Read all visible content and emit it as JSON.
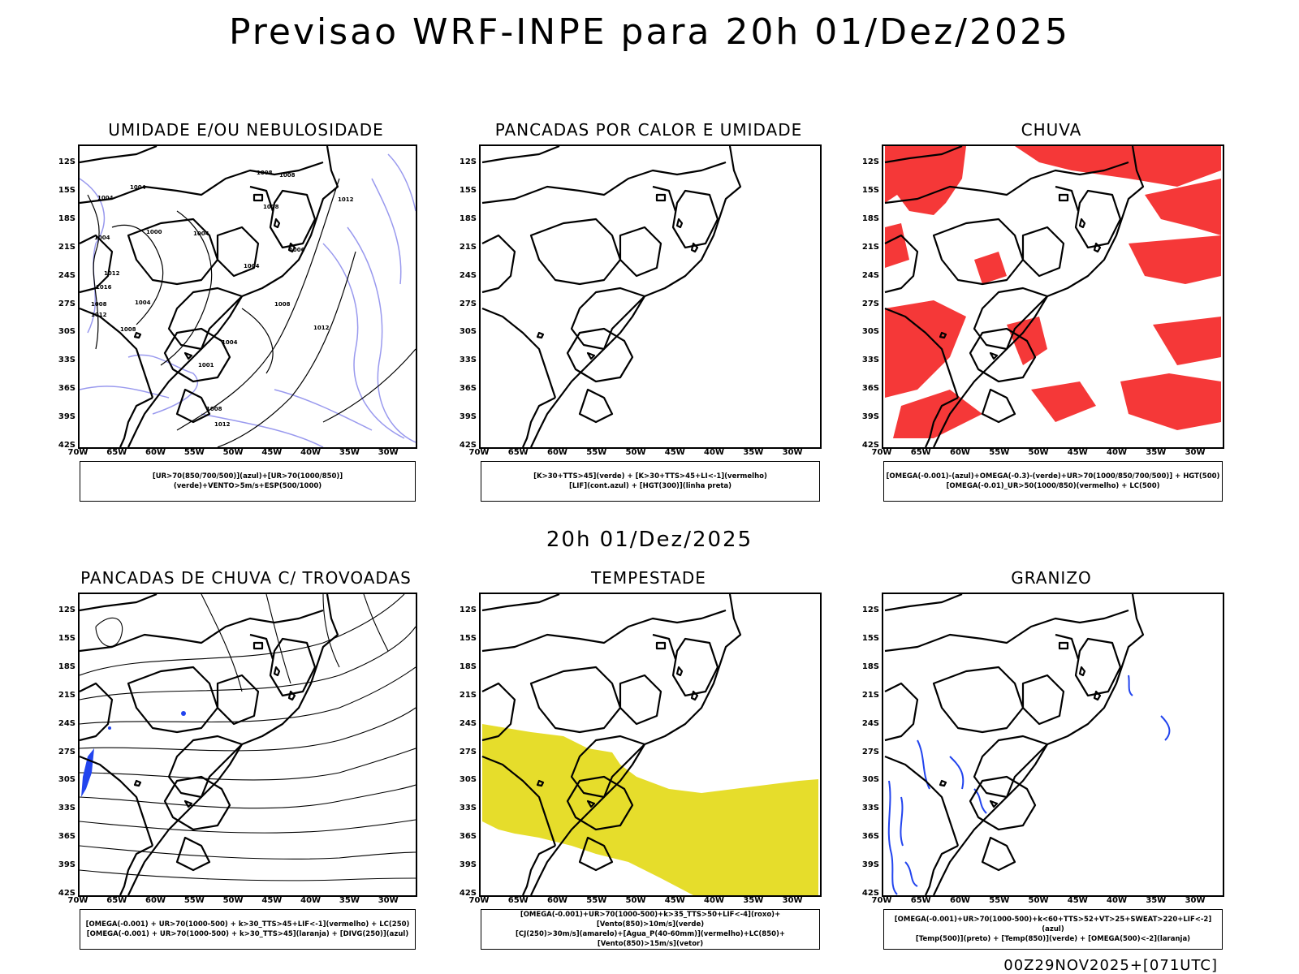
{
  "title": "Previsao WRF-INPE  para 20h 01/Dez/2025",
  "middle_title": "20h 01/Dez/2025",
  "footer": "00Z29NOV2025+[071UTC]",
  "lat_ticks": [
    "12S",
    "15S",
    "18S",
    "21S",
    "24S",
    "27S",
    "30S",
    "33S",
    "36S",
    "39S",
    "42S"
  ],
  "lon_ticks": [
    "70W",
    "65W",
    "60W",
    "55W",
    "50W",
    "45W",
    "40W",
    "35W",
    "30W"
  ],
  "colors": {
    "blue_contour": "#9999ee",
    "red_fill": "#f53838",
    "yellow_fill": "#e6dd2b",
    "blue_marks": "#2244ee"
  },
  "panels": [
    {
      "title": "UMIDADE E/OU NEBULOSIDADE",
      "legend": [
        "[UR>70(850/700/500)](azul)+[UR>70(1000/850)](verde)+VENTO>5m/s+ESP(500/1000)"
      ],
      "isobars": [
        "1004",
        "1004",
        "1008",
        "1008",
        "1000",
        "1004",
        "1004",
        "1008",
        "1012",
        "1016",
        "1004",
        "1008",
        "1012",
        "1004",
        "1008",
        "1004",
        "1001",
        "1012",
        "1008",
        "1012",
        "1008",
        "1012",
        "1006"
      ]
    },
    {
      "title": "PANCADAS POR CALOR E UMIDADE",
      "legend": [
        "[K>30+TTS>45](verde) + [K>30+TTS>45+LI<-1](vermelho)",
        "[LIF](cont.azul) + [HGT(300)](linha preta)"
      ]
    },
    {
      "title": "CHUVA",
      "legend": [
        "[OMEGA(-0.001)-(azul)+OMEGA(-0.3)-(verde)+UR>70(1000/850/700/500)] + HGT(500)",
        "[OMEGA(-0.01)_UR>50(1000/850)(vermelho) + LC(500)"
      ]
    },
    {
      "title": "PANCADAS DE CHUVA C/ TROVOADAS",
      "legend": [
        "[OMEGA(-0.001) + UR>70(1000-500) + k>30_TTS>45+LIF<-1](vermelho) + LC(250)",
        "[OMEGA(-0.001) + UR>70(1000-500) + k>30_TTS>45](laranja) + [DIVG(250)](azul)"
      ]
    },
    {
      "title": "TEMPESTADE",
      "legend": [
        "[OMEGA(-0.001)+UR>70(1000-500)+k>35_TTS>50+LIF<-4](roxo)+[Vento(850)>10m/s](verde)",
        "[CJ(250)>30m/s](amarelo)+[Agua_P(40-60mm)](vermelho)+LC(850)+[Vento(850)>15m/s](vetor)"
      ]
    },
    {
      "title": "GRANIZO",
      "legend": [
        "[OMEGA(-0.001)+UR>70(1000-500)+k<60+TTS>52+VT>25+SWEAT>220+LIF<-2](azul)",
        "[Temp(500)](preto) + [Temp(850)](verde) + [OMEGA(500)<-2](laranja)"
      ]
    }
  ]
}
